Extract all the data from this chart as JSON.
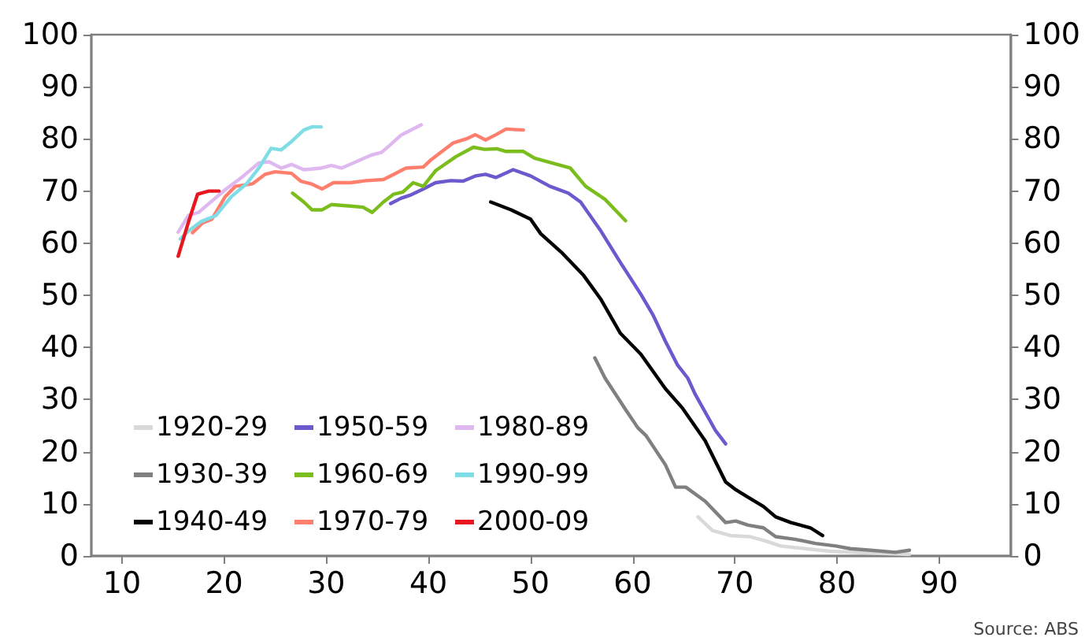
{
  "chart_data": {
    "type": "line",
    "xlim": [
      7,
      97
    ],
    "xticks": [
      10,
      20,
      30,
      40,
      50,
      60,
      70,
      80,
      90
    ],
    "ylim": [
      0,
      100
    ],
    "yticks": [
      0,
      10,
      20,
      30,
      40,
      50,
      60,
      70,
      80,
      90,
      100
    ],
    "y2lim": [
      0,
      100
    ],
    "y2ticks": [
      0,
      10,
      20,
      30,
      40,
      50,
      60,
      70,
      80,
      90,
      100
    ],
    "grid": false,
    "legend": "bottom left",
    "marker": "none",
    "line_style": "solid",
    "annotations": [
      "Source: ABS"
    ],
    "series": [
      {
        "name": "1920-29",
        "color": "#d9d9d9",
        "x": [
          66.4,
          67.8,
          69.6,
          71.5,
          73,
          74.5,
          76.9,
          79.3,
          84.2,
          87.1
        ],
        "values": [
          7.5,
          4.9,
          3.9,
          3.7,
          2.9,
          1.9,
          1.4,
          0.9,
          0.5,
          0.3
        ]
      },
      {
        "name": "1930-39",
        "color": "#808080",
        "x": [
          56.3,
          57.3,
          59.3,
          60.5,
          61.3,
          63.2,
          64.2,
          65.2,
          67.1,
          69.1,
          70.1,
          71.3,
          72.8,
          74,
          75.9,
          77.9,
          79.9,
          81.3,
          83.3,
          85.7,
          87.1
        ],
        "values": [
          38,
          34.1,
          28.1,
          24.6,
          23.1,
          17.5,
          13.2,
          13.2,
          10.5,
          6.4,
          6.7,
          5.9,
          5.4,
          3.7,
          3.2,
          2.4,
          1.9,
          1.4,
          1.1,
          0.7,
          1.1
        ]
      },
      {
        "name": "1940-49",
        "color": "#000000",
        "x": [
          46.1,
          48.1,
          50,
          51,
          53,
          55.2,
          56.9,
          58.8,
          60.8,
          63.2,
          64.9,
          67.1,
          69.1,
          70.1,
          71.1,
          72.8,
          74,
          75.5,
          77.4,
          78.6
        ],
        "values": [
          67.9,
          66.4,
          64.6,
          61.8,
          58.3,
          53.8,
          49.2,
          42.7,
          38.7,
          32.1,
          28.3,
          22.1,
          14.2,
          12.7,
          11.5,
          9.5,
          7.5,
          6.4,
          5.4,
          3.9
        ]
      },
      {
        "name": "1950-59",
        "color": "#6a5acd",
        "x": [
          36.3,
          37.3,
          38.2,
          39.5,
          40.7,
          42.2,
          43.4,
          44.6,
          45.6,
          46.6,
          48.3,
          50,
          51.9,
          53.7,
          54.9,
          56.9,
          58.8,
          60.8,
          62,
          63.2,
          64.4,
          65.4,
          66.1,
          68.1,
          69.1
        ],
        "values": [
          67.6,
          68.6,
          69.2,
          70.4,
          71.6,
          72,
          71.9,
          72.9,
          73.2,
          72.6,
          74.1,
          72.9,
          70.9,
          69.6,
          67.9,
          62.3,
          56.3,
          50.2,
          46.2,
          41.2,
          36.6,
          34.1,
          31.1,
          24.1,
          21.5
        ]
      },
      {
        "name": "1960-69",
        "color": "#7cbd1e",
        "x": [
          26.7,
          27.8,
          28.6,
          29.6,
          30.5,
          32.4,
          33.6,
          34.5,
          35.6,
          36.6,
          37.5,
          38.5,
          39.5,
          40.7,
          42.7,
          44.4,
          45.5,
          46.7,
          47.6,
          49.3,
          50.4,
          53.9,
          55.4,
          57.3,
          59.3
        ],
        "values": [
          69.6,
          67.9,
          66.4,
          66.4,
          67.4,
          67.1,
          66.9,
          65.9,
          67.9,
          69.4,
          69.8,
          71.6,
          70.9,
          73.9,
          76.6,
          78.4,
          78,
          78.1,
          77.6,
          77.6,
          76.3,
          74.4,
          70.9,
          68.4,
          64.3
        ]
      },
      {
        "name": "1970-79",
        "color": "#ff7f6e",
        "x": [
          16.9,
          17.9,
          18.8,
          20.1,
          21.1,
          22.8,
          24,
          25,
          26.6,
          27.5,
          28.5,
          29.6,
          30.7,
          32.4,
          33.9,
          35.6,
          36.6,
          37.8,
          39.5,
          40.2,
          42.4,
          43.7,
          44.6,
          45.6,
          46.6,
          47.6,
          49.3
        ],
        "values": [
          62,
          63.9,
          64.6,
          68.9,
          70.9,
          71.4,
          73.2,
          73.7,
          73.4,
          71.9,
          71.4,
          70.4,
          71.6,
          71.6,
          72,
          72.2,
          73.2,
          74.4,
          74.6,
          75.9,
          79.2,
          80,
          80.8,
          79.8,
          80.8,
          81.9,
          81.7
        ]
      },
      {
        "name": "1980-89",
        "color": "#e0b8f0",
        "x": [
          15.5,
          16.5,
          17.5,
          18.7,
          20.2,
          21.9,
          23.4,
          24.4,
          25.6,
          26.6,
          27.8,
          29.5,
          30.5,
          31.5,
          32.9,
          34.4,
          35.4,
          36.3,
          37.3,
          39.3
        ],
        "values": [
          62.1,
          65.3,
          65.9,
          67.9,
          70.4,
          72.9,
          75.4,
          75.6,
          74.4,
          75.1,
          74.1,
          74.4,
          74.9,
          74.4,
          75.6,
          76.9,
          77.4,
          78.9,
          80.7,
          82.7
        ]
      },
      {
        "name": "1990-99",
        "color": "#7fdde6",
        "x": [
          15.7,
          16.5,
          17.7,
          19.2,
          20.7,
          22.2,
          23.4,
          24.6,
          25.6,
          26.6,
          27.8,
          28.6,
          29.5
        ],
        "values": [
          60.8,
          62.3,
          64.1,
          65.3,
          68.9,
          71.4,
          74.4,
          78.2,
          77.9,
          79.5,
          81.7,
          82.3,
          82.3
        ]
      },
      {
        "name": "2000-09",
        "color": "#e8171f",
        "x": [
          15.5,
          16.5,
          17.4,
          18.5,
          19.5
        ],
        "values": [
          57.5,
          64,
          69.4,
          70,
          70
        ]
      }
    ]
  }
}
